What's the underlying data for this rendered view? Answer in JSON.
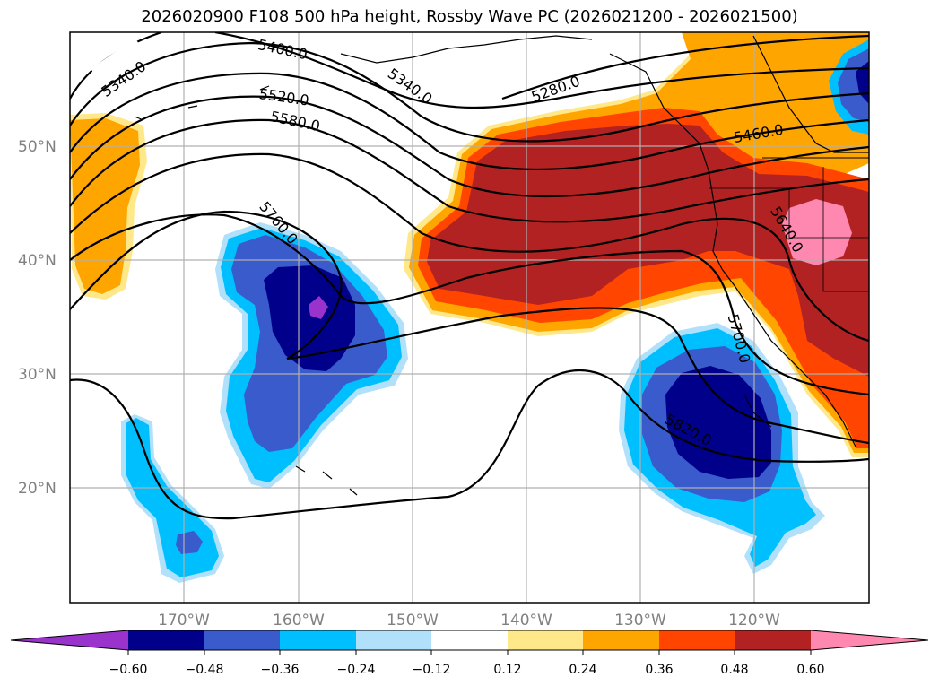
{
  "title": "2026020900 F108 500 hPa height, Rossby Wave PC (2026021200 - 2026021500)",
  "map": {
    "lat_labels": [
      "50°N",
      "40°N",
      "30°N",
      "20°N"
    ],
    "lon_labels": [
      "170°W",
      "160°W",
      "150°W",
      "140°W",
      "130°W",
      "120°W"
    ],
    "contour_labels": [
      "5340.0",
      "5400.0",
      "5340.0",
      "5280.0",
      "5520.0",
      "5580.0",
      "5460.0",
      "5760.0",
      "5640.0",
      "5700.0",
      "5820.0"
    ]
  },
  "colorbar": {
    "ticks": [
      "−0.60",
      "−0.48",
      "−0.36",
      "−0.24",
      "−0.12",
      "0.12",
      "0.24",
      "0.36",
      "0.48",
      "0.60"
    ],
    "colors": [
      "#9933cc",
      "#00008b",
      "#3a5bcc",
      "#00bfff",
      "#b0e0fa",
      "#ffffff",
      "#ffe88a",
      "#ffa500",
      "#ff4500",
      "#b22222",
      "#ff88b0"
    ]
  }
}
